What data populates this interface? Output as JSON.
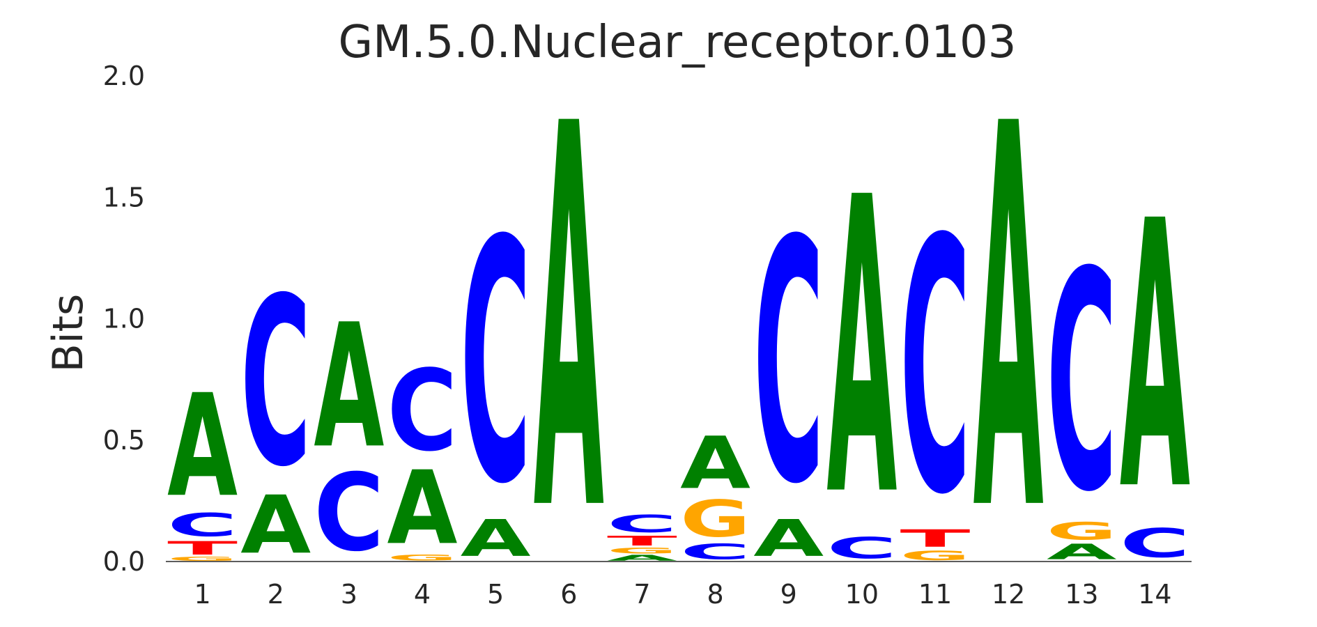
{
  "chart_data": {
    "type": "sequence-logo",
    "title": "GM.5.0.Nuclear_receptor.0103",
    "ylabel": "Bits",
    "xlabel": "",
    "ylim": [
      0,
      2.0
    ],
    "yticks": [
      "0.0",
      "0.5",
      "1.0",
      "1.5",
      "2.0"
    ],
    "grid": false,
    "legend": "none",
    "colors": {
      "A": "#008000",
      "C": "#0000ff",
      "G": "#ffa500",
      "T": "#ff0000"
    },
    "positions": [
      {
        "label": "1",
        "stack": [
          {
            "base": "G",
            "bits": 0.02
          },
          {
            "base": "T",
            "bits": 0.07
          },
          {
            "base": "C",
            "bits": 0.12
          },
          {
            "base": "A",
            "bits": 0.53
          }
        ]
      },
      {
        "label": "2",
        "stack": [
          {
            "base": "A",
            "bits": 0.3
          },
          {
            "base": "C",
            "bits": 0.87
          }
        ]
      },
      {
        "label": "3",
        "stack": [
          {
            "base": "C",
            "bits": 0.4
          },
          {
            "base": "A",
            "bits": 0.64
          }
        ]
      },
      {
        "label": "4",
        "stack": [
          {
            "base": "G",
            "bits": 0.03
          },
          {
            "base": "A",
            "bits": 0.38
          },
          {
            "base": "C",
            "bits": 0.42
          }
        ]
      },
      {
        "label": "5",
        "stack": [
          {
            "base": "A",
            "bits": 0.19
          },
          {
            "base": "C",
            "bits": 1.25
          }
        ]
      },
      {
        "label": "6",
        "stack": [
          {
            "base": "A",
            "bits": 1.98
          }
        ]
      },
      {
        "label": "7",
        "stack": [
          {
            "base": "A",
            "bits": 0.03
          },
          {
            "base": "G",
            "bits": 0.03
          },
          {
            "base": "T",
            "bits": 0.05
          },
          {
            "base": "C",
            "bits": 0.09
          }
        ]
      },
      {
        "label": "8",
        "stack": [
          {
            "base": "C",
            "bits": 0.08
          },
          {
            "base": "G",
            "bits": 0.19
          },
          {
            "base": "A",
            "bits": 0.27
          }
        ]
      },
      {
        "label": "9",
        "stack": [
          {
            "base": "A",
            "bits": 0.19
          },
          {
            "base": "C",
            "bits": 1.25
          }
        ]
      },
      {
        "label": "10",
        "stack": [
          {
            "base": "C",
            "bits": 0.11
          },
          {
            "base": "A",
            "bits": 1.53
          }
        ]
      },
      {
        "label": "11",
        "stack": [
          {
            "base": "G",
            "bits": 0.05
          },
          {
            "base": "T",
            "bits": 0.09
          },
          {
            "base": "C",
            "bits": 1.31
          }
        ]
      },
      {
        "label": "12",
        "stack": [
          {
            "base": "A",
            "bits": 1.98
          }
        ]
      },
      {
        "label": "13",
        "stack": [
          {
            "base": "A",
            "bits": 0.08
          },
          {
            "base": "G",
            "bits": 0.09
          },
          {
            "base": "C",
            "bits": 1.13
          }
        ]
      },
      {
        "label": "14",
        "stack": [
          {
            "base": "C",
            "bits": 0.15
          },
          {
            "base": "A",
            "bits": 1.38
          }
        ]
      }
    ]
  }
}
